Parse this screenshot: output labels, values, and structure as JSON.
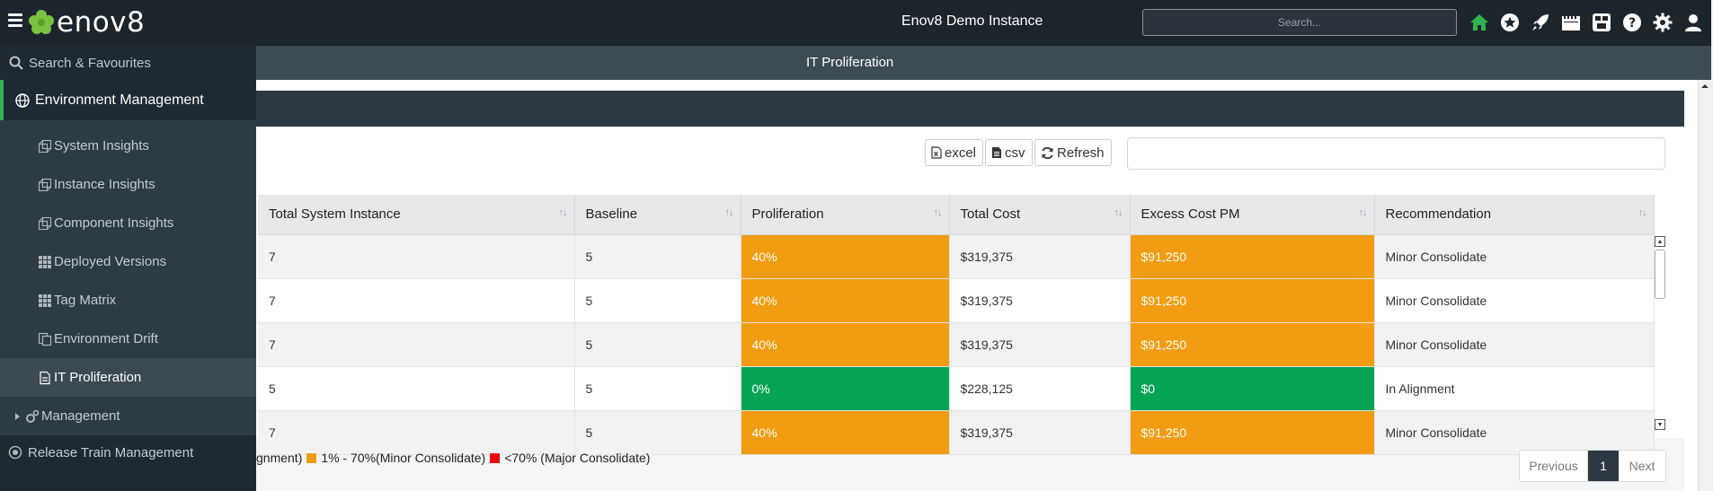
{
  "header": {
    "logo_text": "enov8",
    "app_title": "Enov8 Demo Instance",
    "search_placeholder": "Search...",
    "icons": [
      "home-icon",
      "star-icon",
      "rocket-icon",
      "calendar-icon",
      "dashboard-icon",
      "help-icon",
      "gear-icon",
      "user-icon"
    ],
    "accent_color": "#2eb34c"
  },
  "sidebar": {
    "search_label": "Search & Favourites",
    "section_label": "Environment Management",
    "items": [
      {
        "label": "System Insights",
        "icon": "cubes-icon"
      },
      {
        "label": "Instance Insights",
        "icon": "cubes-icon"
      },
      {
        "label": "Component Insights",
        "icon": "cubes-icon"
      },
      {
        "label": "Deployed Versions",
        "icon": "grid-icon"
      },
      {
        "label": "Tag Matrix",
        "icon": "grid-icon"
      },
      {
        "label": "Environment Drift",
        "icon": "copy-icon"
      },
      {
        "label": "IT Proliferation",
        "icon": "document-icon"
      }
    ],
    "management_label": "Management",
    "release_label": "Release Train Management"
  },
  "page": {
    "title": "IT Proliferation"
  },
  "toolbar": {
    "excel_label": "excel",
    "csv_label": "csv",
    "refresh_label": "Refresh"
  },
  "table": {
    "columns": [
      "Total System Instance",
      "Baseline",
      "Proliferation",
      "Total Cost",
      "Excess Cost PM",
      "Recommendation"
    ],
    "rows": [
      {
        "total": "7",
        "baseline": "5",
        "proliferation": "40%",
        "cost": "$319,375",
        "excess": "$91,250",
        "recommendation": "Minor Consolidate",
        "status": "orange"
      },
      {
        "total": "7",
        "baseline": "5",
        "proliferation": "40%",
        "cost": "$319,375",
        "excess": "$91,250",
        "recommendation": "Minor Consolidate",
        "status": "orange"
      },
      {
        "total": "7",
        "baseline": "5",
        "proliferation": "40%",
        "cost": "$319,375",
        "excess": "$91,250",
        "recommendation": "Minor Consolidate",
        "status": "orange"
      },
      {
        "total": "5",
        "baseline": "5",
        "proliferation": "0%",
        "cost": "$228,125",
        "excess": "$0",
        "recommendation": "In Alignment",
        "status": "green"
      },
      {
        "total": "7",
        "baseline": "5",
        "proliferation": "40%",
        "cost": "$319,375",
        "excess": "$91,250",
        "recommendation": "Minor Consolidate",
        "status": "orange"
      }
    ]
  },
  "legend": {
    "alignment_text": "gnment)",
    "minor_text": "1% - 70%(Minor Consolidate)",
    "major_text": "<70% (Major Consolidate)",
    "colors": {
      "orange": "#f29c12",
      "green": "#05a454",
      "red": "#e8000b"
    }
  },
  "pager": {
    "previous_label": "Previous",
    "current_page": "1",
    "next_label": "Next"
  }
}
